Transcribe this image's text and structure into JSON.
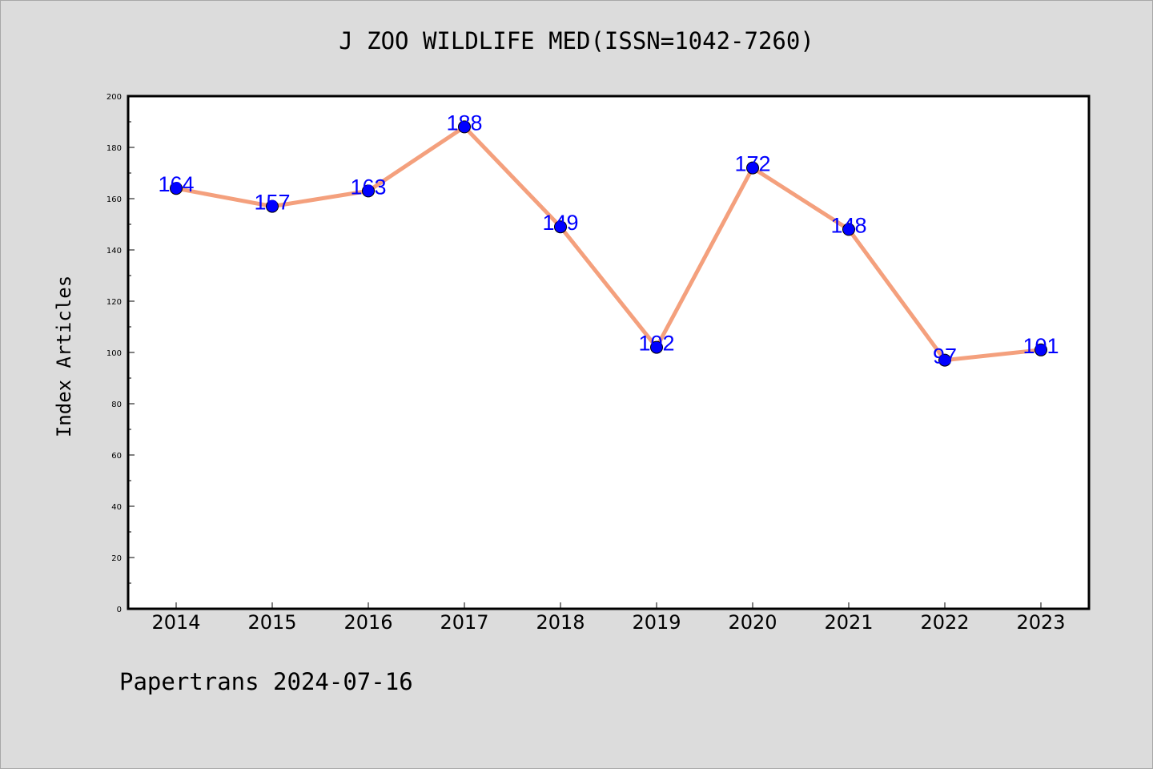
{
  "chart_data": {
    "type": "line",
    "title": "J ZOO WILDLIFE MED(ISSN=1042-7260)",
    "xlabel": "",
    "ylabel": "Index Articles",
    "categories": [
      "2014",
      "2015",
      "2016",
      "2017",
      "2018",
      "2019",
      "2020",
      "2021",
      "2022",
      "2023"
    ],
    "values": [
      164,
      157,
      163,
      188,
      149,
      102,
      172,
      148,
      97,
      101
    ],
    "data_labels": [
      "164",
      "157",
      "163",
      "188",
      "149",
      "102",
      "172",
      "148",
      "97",
      "101"
    ],
    "ylim": [
      0,
      200
    ],
    "yticks": [
      0,
      20,
      40,
      60,
      80,
      100,
      120,
      140,
      160,
      180,
      200
    ],
    "grid": false,
    "legend": "none",
    "line_color": "#f4a07d",
    "marker_color": "#0000ff",
    "label_color": "#0000ff"
  },
  "footer": {
    "note": "Papertrans 2024-07-16"
  }
}
